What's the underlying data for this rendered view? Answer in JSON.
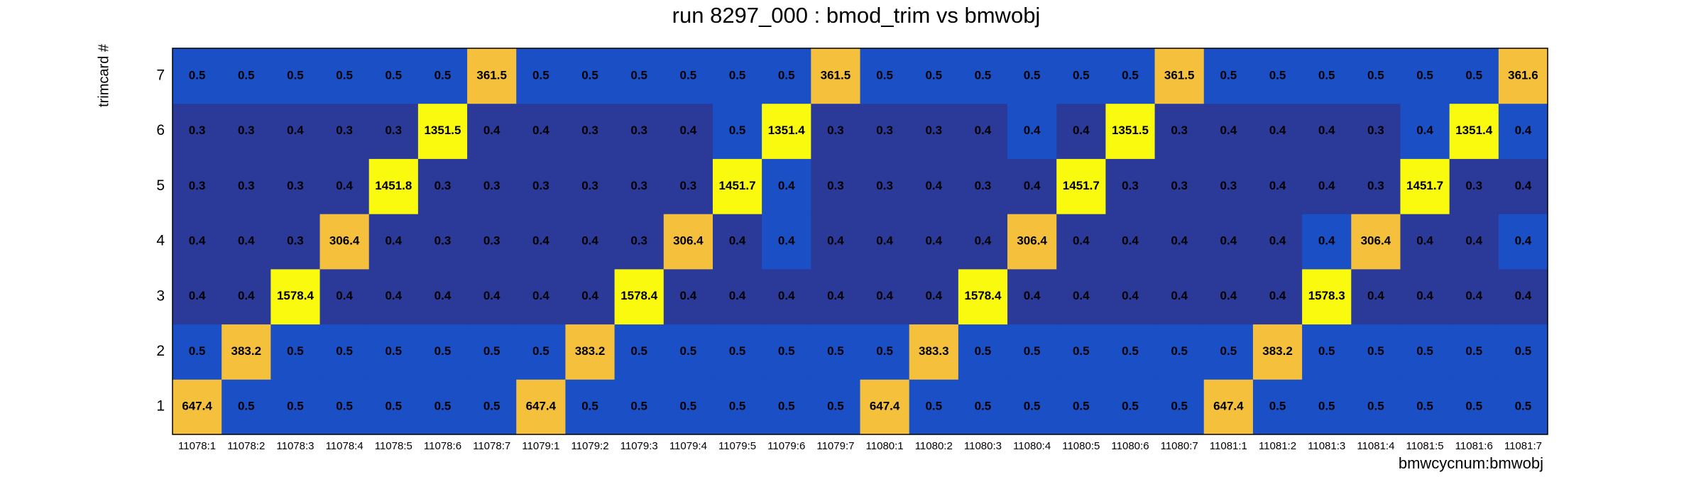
{
  "chart_data": {
    "type": "heatmap",
    "title": "run 8297_000 : bmod_trim vs bmwobj",
    "x_label": "bmwcycnum:bmwobj",
    "y_label": "trimcard #",
    "x": [
      "11078:1",
      "11078:2",
      "11078:3",
      "11078:4",
      "11078:5",
      "11078:6",
      "11078:7",
      "11079:1",
      "11079:2",
      "11079:3",
      "11079:4",
      "11079:5",
      "11079:6",
      "11079:7",
      "11080:1",
      "11080:2",
      "11080:3",
      "11080:4",
      "11080:5",
      "11080:6",
      "11080:7",
      "11081:1",
      "11081:2",
      "11081:3",
      "11081:4",
      "11081:5",
      "11081:6",
      "11081:7"
    ],
    "y": [
      "1",
      "2",
      "3",
      "4",
      "5",
      "6",
      "7"
    ],
    "values": [
      [
        647.4,
        0.5,
        0.5,
        0.5,
        0.5,
        0.5,
        0.5,
        647.4,
        0.5,
        0.5,
        0.5,
        0.5,
        0.5,
        0.5,
        647.4,
        0.5,
        0.5,
        0.5,
        0.5,
        0.5,
        0.5,
        647.4,
        0.5,
        0.5,
        0.5,
        0.5,
        0.5,
        0.5
      ],
      [
        0.5,
        383.2,
        0.5,
        0.5,
        0.5,
        0.5,
        0.5,
        0.5,
        383.2,
        0.5,
        0.5,
        0.5,
        0.5,
        0.5,
        0.5,
        383.3,
        0.5,
        0.5,
        0.5,
        0.5,
        0.5,
        0.5,
        383.2,
        0.5,
        0.5,
        0.5,
        0.5,
        0.5
      ],
      [
        0.4,
        0.4,
        1578.4,
        0.4,
        0.4,
        0.4,
        0.4,
        0.4,
        0.4,
        1578.4,
        0.4,
        0.4,
        0.4,
        0.4,
        0.4,
        0.4,
        1578.4,
        0.4,
        0.4,
        0.4,
        0.4,
        0.4,
        0.4,
        1578.3,
        0.4,
        0.4,
        0.4,
        0.4
      ],
      [
        0.4,
        0.4,
        0.3,
        306.4,
        0.4,
        0.3,
        0.3,
        0.4,
        0.4,
        0.3,
        306.4,
        0.4,
        0.4,
        0.4,
        0.4,
        0.4,
        0.4,
        306.4,
        0.4,
        0.4,
        0.4,
        0.4,
        0.4,
        0.4,
        306.4,
        0.4,
        0.4,
        0.4
      ],
      [
        0.3,
        0.3,
        0.3,
        0.4,
        1451.8,
        0.3,
        0.3,
        0.3,
        0.3,
        0.3,
        0.3,
        1451.7,
        0.4,
        0.3,
        0.3,
        0.4,
        0.3,
        0.4,
        1451.7,
        0.3,
        0.3,
        0.3,
        0.4,
        0.4,
        0.3,
        1451.7,
        0.3,
        0.4
      ],
      [
        0.3,
        0.3,
        0.4,
        0.3,
        0.3,
        1351.5,
        0.4,
        0.4,
        0.3,
        0.3,
        0.4,
        0.5,
        1351.4,
        0.3,
        0.3,
        0.3,
        0.4,
        0.4,
        0.4,
        1351.5,
        0.3,
        0.4,
        0.4,
        0.4,
        0.3,
        0.4,
        1351.4,
        0.4
      ],
      [
        0.5,
        0.5,
        0.5,
        0.5,
        0.5,
        0.5,
        361.5,
        0.5,
        0.5,
        0.5,
        0.5,
        0.5,
        0.5,
        361.5,
        0.5,
        0.5,
        0.5,
        0.5,
        0.5,
        0.5,
        361.5,
        0.5,
        0.5,
        0.5,
        0.5,
        0.5,
        0.5,
        361.6
      ]
    ],
    "colors": [
      [
        "#f5c13d",
        "#1a4fc6",
        "#1a4fc6",
        "#1a4fc6",
        "#1a4fc6",
        "#1a4fc6",
        "#1a4fc6",
        "#f5c13d",
        "#1a4fc6",
        "#1a4fc6",
        "#1a4fc6",
        "#1a4fc6",
        "#1a4fc6",
        "#1a4fc6",
        "#f5c13d",
        "#1a4fc6",
        "#1a4fc6",
        "#1a4fc6",
        "#1a4fc6",
        "#1a4fc6",
        "#1a4fc6",
        "#f5c13d",
        "#1a4fc6",
        "#1a4fc6",
        "#1a4fc6",
        "#1a4fc6",
        "#1a4fc6",
        "#1a4fc6"
      ],
      [
        "#1a4fc6",
        "#f5c13d",
        "#1a4fc6",
        "#1a4fc6",
        "#1a4fc6",
        "#1a4fc6",
        "#1a4fc6",
        "#1a4fc6",
        "#f5c13d",
        "#1a4fc6",
        "#1a4fc6",
        "#1a4fc6",
        "#1a4fc6",
        "#1a4fc6",
        "#1a4fc6",
        "#f5c13d",
        "#1a4fc6",
        "#1a4fc6",
        "#1a4fc6",
        "#1a4fc6",
        "#1a4fc6",
        "#1a4fc6",
        "#f5c13d",
        "#1a4fc6",
        "#1a4fc6",
        "#1a4fc6",
        "#1a4fc6",
        "#1a4fc6"
      ],
      [
        "#2b3a99",
        "#2b3a99",
        "#fafa0f",
        "#2b3a99",
        "#2b3a99",
        "#2b3a99",
        "#2b3a99",
        "#2b3a99",
        "#2b3a99",
        "#fafa0f",
        "#2b3a99",
        "#2b3a99",
        "#2b3a99",
        "#2b3a99",
        "#2b3a99",
        "#2b3a99",
        "#fafa0f",
        "#2b3a99",
        "#2b3a99",
        "#2b3a99",
        "#2b3a99",
        "#2b3a99",
        "#2b3a99",
        "#fafa0f",
        "#2b3a99",
        "#2b3a99",
        "#2b3a99",
        "#2b3a99"
      ],
      [
        "#2b3a99",
        "#2b3a99",
        "#2b3a99",
        "#f5c13d",
        "#2b3a99",
        "#2b3a99",
        "#2b3a99",
        "#2b3a99",
        "#2b3a99",
        "#2b3a99",
        "#f5c13d",
        "#2b3a99",
        "#1a4fc6",
        "#2b3a99",
        "#2b3a99",
        "#2b3a99",
        "#2b3a99",
        "#f5c13d",
        "#2b3a99",
        "#2b3a99",
        "#2b3a99",
        "#2b3a99",
        "#2b3a99",
        "#1a4fc6",
        "#f5c13d",
        "#2b3a99",
        "#2b3a99",
        "#1a4fc6"
      ],
      [
        "#2b3a99",
        "#2b3a99",
        "#2b3a99",
        "#2b3a99",
        "#fafa0f",
        "#2b3a99",
        "#2b3a99",
        "#2b3a99",
        "#2b3a99",
        "#2b3a99",
        "#2b3a99",
        "#fafa0f",
        "#1a4fc6",
        "#2b3a99",
        "#2b3a99",
        "#2b3a99",
        "#2b3a99",
        "#2b3a99",
        "#fafa0f",
        "#2b3a99",
        "#2b3a99",
        "#2b3a99",
        "#2b3a99",
        "#2b3a99",
        "#2b3a99",
        "#fafa0f",
        "#2b3a99",
        "#2b3a99"
      ],
      [
        "#2b3a99",
        "#2b3a99",
        "#2b3a99",
        "#2b3a99",
        "#2b3a99",
        "#fafa0f",
        "#2b3a99",
        "#2b3a99",
        "#2b3a99",
        "#2b3a99",
        "#2b3a99",
        "#1a4fc6",
        "#fafa0f",
        "#2b3a99",
        "#2b3a99",
        "#2b3a99",
        "#2b3a99",
        "#1a4fc6",
        "#2b3a99",
        "#fafa0f",
        "#2b3a99",
        "#2b3a99",
        "#2b3a99",
        "#2b3a99",
        "#2b3a99",
        "#1a4fc6",
        "#fafa0f",
        "#1a4fc6"
      ],
      [
        "#1a4fc6",
        "#1a4fc6",
        "#1a4fc6",
        "#1a4fc6",
        "#1a4fc6",
        "#1a4fc6",
        "#f5c13d",
        "#1a4fc6",
        "#1a4fc6",
        "#1a4fc6",
        "#1a4fc6",
        "#1a4fc6",
        "#1a4fc6",
        "#f5c13d",
        "#1a4fc6",
        "#1a4fc6",
        "#1a4fc6",
        "#1a4fc6",
        "#1a4fc6",
        "#1a4fc6",
        "#f5c13d",
        "#1a4fc6",
        "#1a4fc6",
        "#1a4fc6",
        "#1a4fc6",
        "#1a4fc6",
        "#1a4fc6",
        "#f5c13d"
      ]
    ]
  }
}
